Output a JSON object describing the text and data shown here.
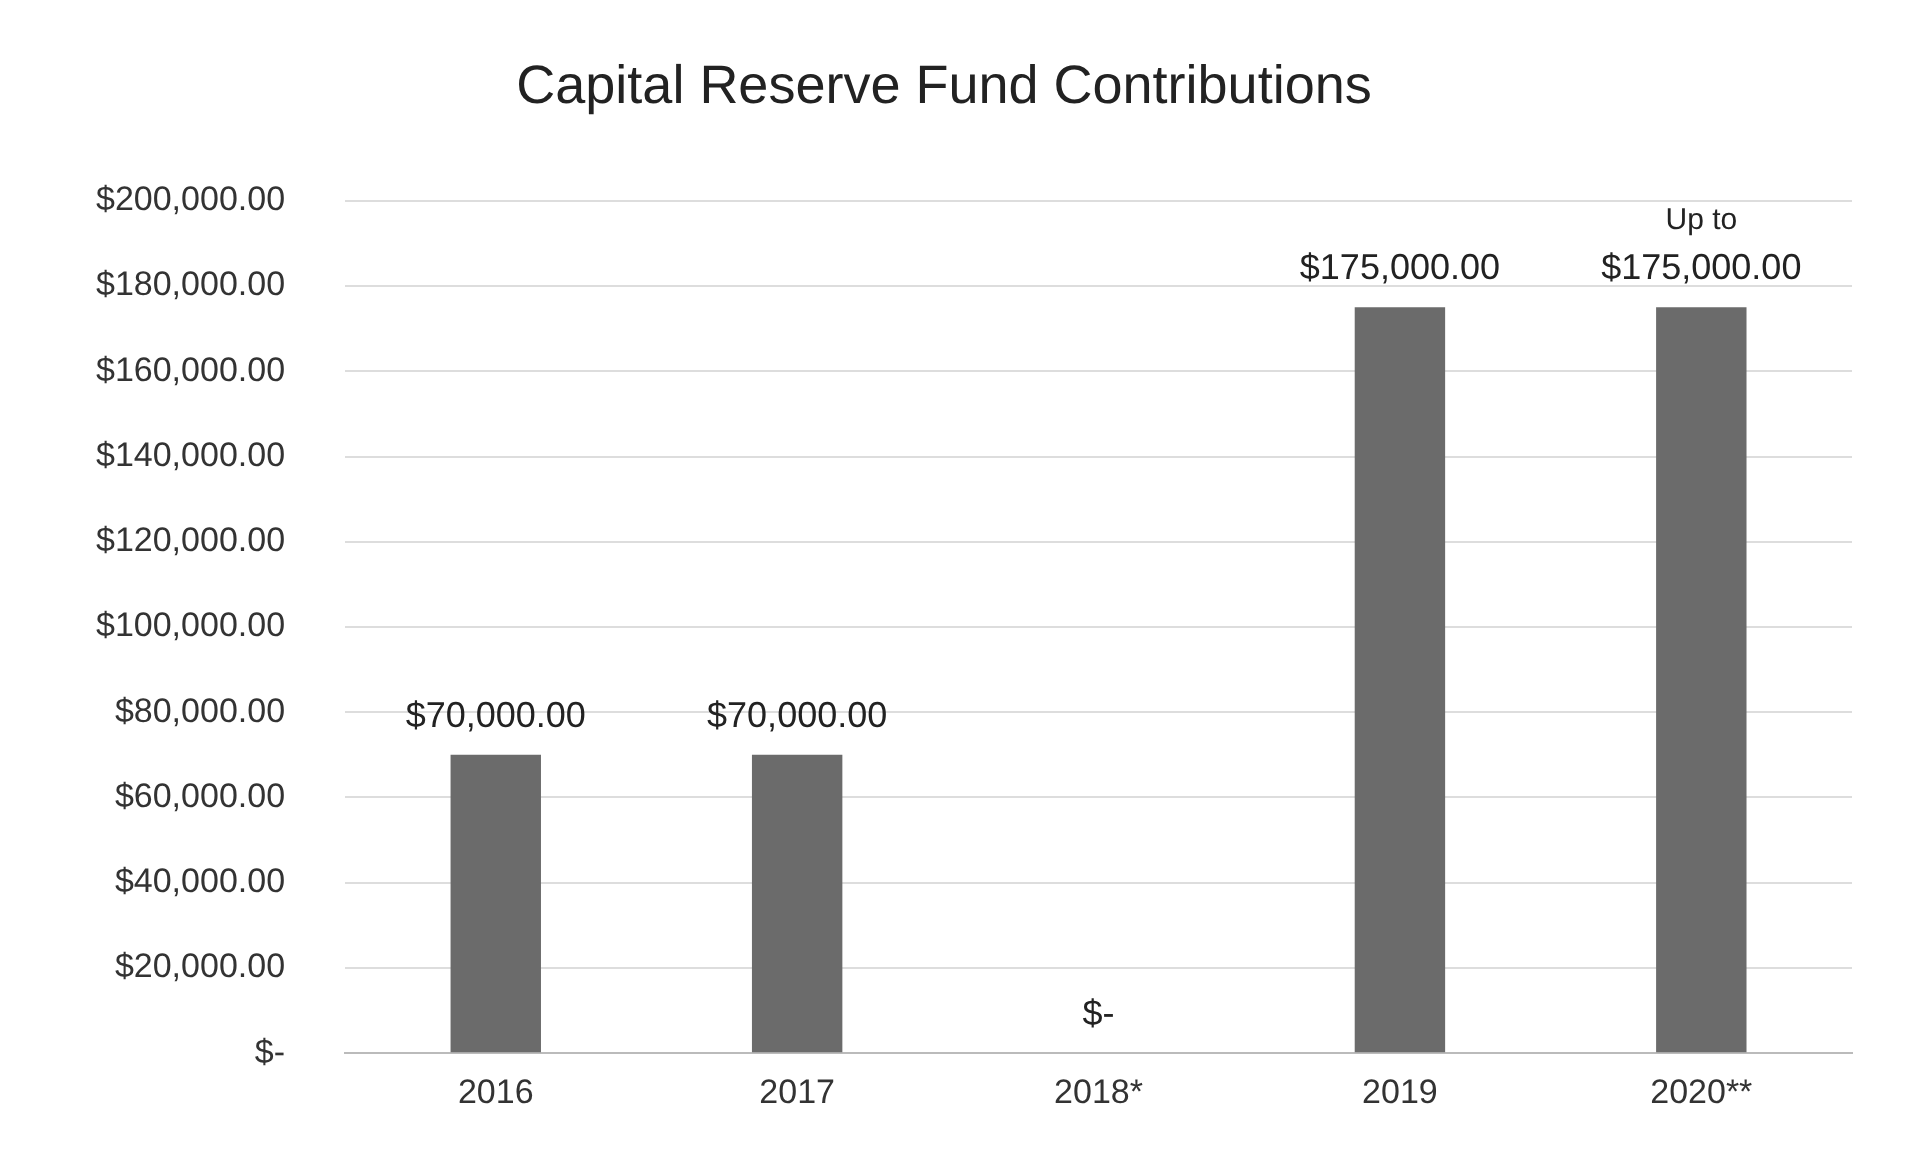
{
  "chart_data": {
    "type": "bar",
    "title": "Capital Reserve Fund Contributions",
    "categories": [
      "2016",
      "2017",
      "2018*",
      "2019",
      "2020**"
    ],
    "values": [
      70000,
      70000,
      0,
      175000,
      175000
    ],
    "value_labels": [
      "$70,000.00",
      "$70,000.00",
      "$-",
      "$175,000.00",
      "Up to\n$175,000.00"
    ],
    "color": "#6b6b6b",
    "ylim": [
      0,
      200000
    ],
    "yticks": [
      {
        "value": 0,
        "label": "$-"
      },
      {
        "value": 20000,
        "label": "$20,000.00"
      },
      {
        "value": 40000,
        "label": "$40,000.00"
      },
      {
        "value": 60000,
        "label": "$60,000.00"
      },
      {
        "value": 80000,
        "label": "$80,000.00"
      },
      {
        "value": 100000,
        "label": "$100,000.00"
      },
      {
        "value": 120000,
        "label": "$120,000.00"
      },
      {
        "value": 140000,
        "label": "$140,000.00"
      },
      {
        "value": 160000,
        "label": "$160,000.00"
      },
      {
        "value": 180000,
        "label": "$180,000.00"
      },
      {
        "value": 200000,
        "label": "$200,000.00"
      }
    ],
    "grid": "y",
    "legend": false
  }
}
